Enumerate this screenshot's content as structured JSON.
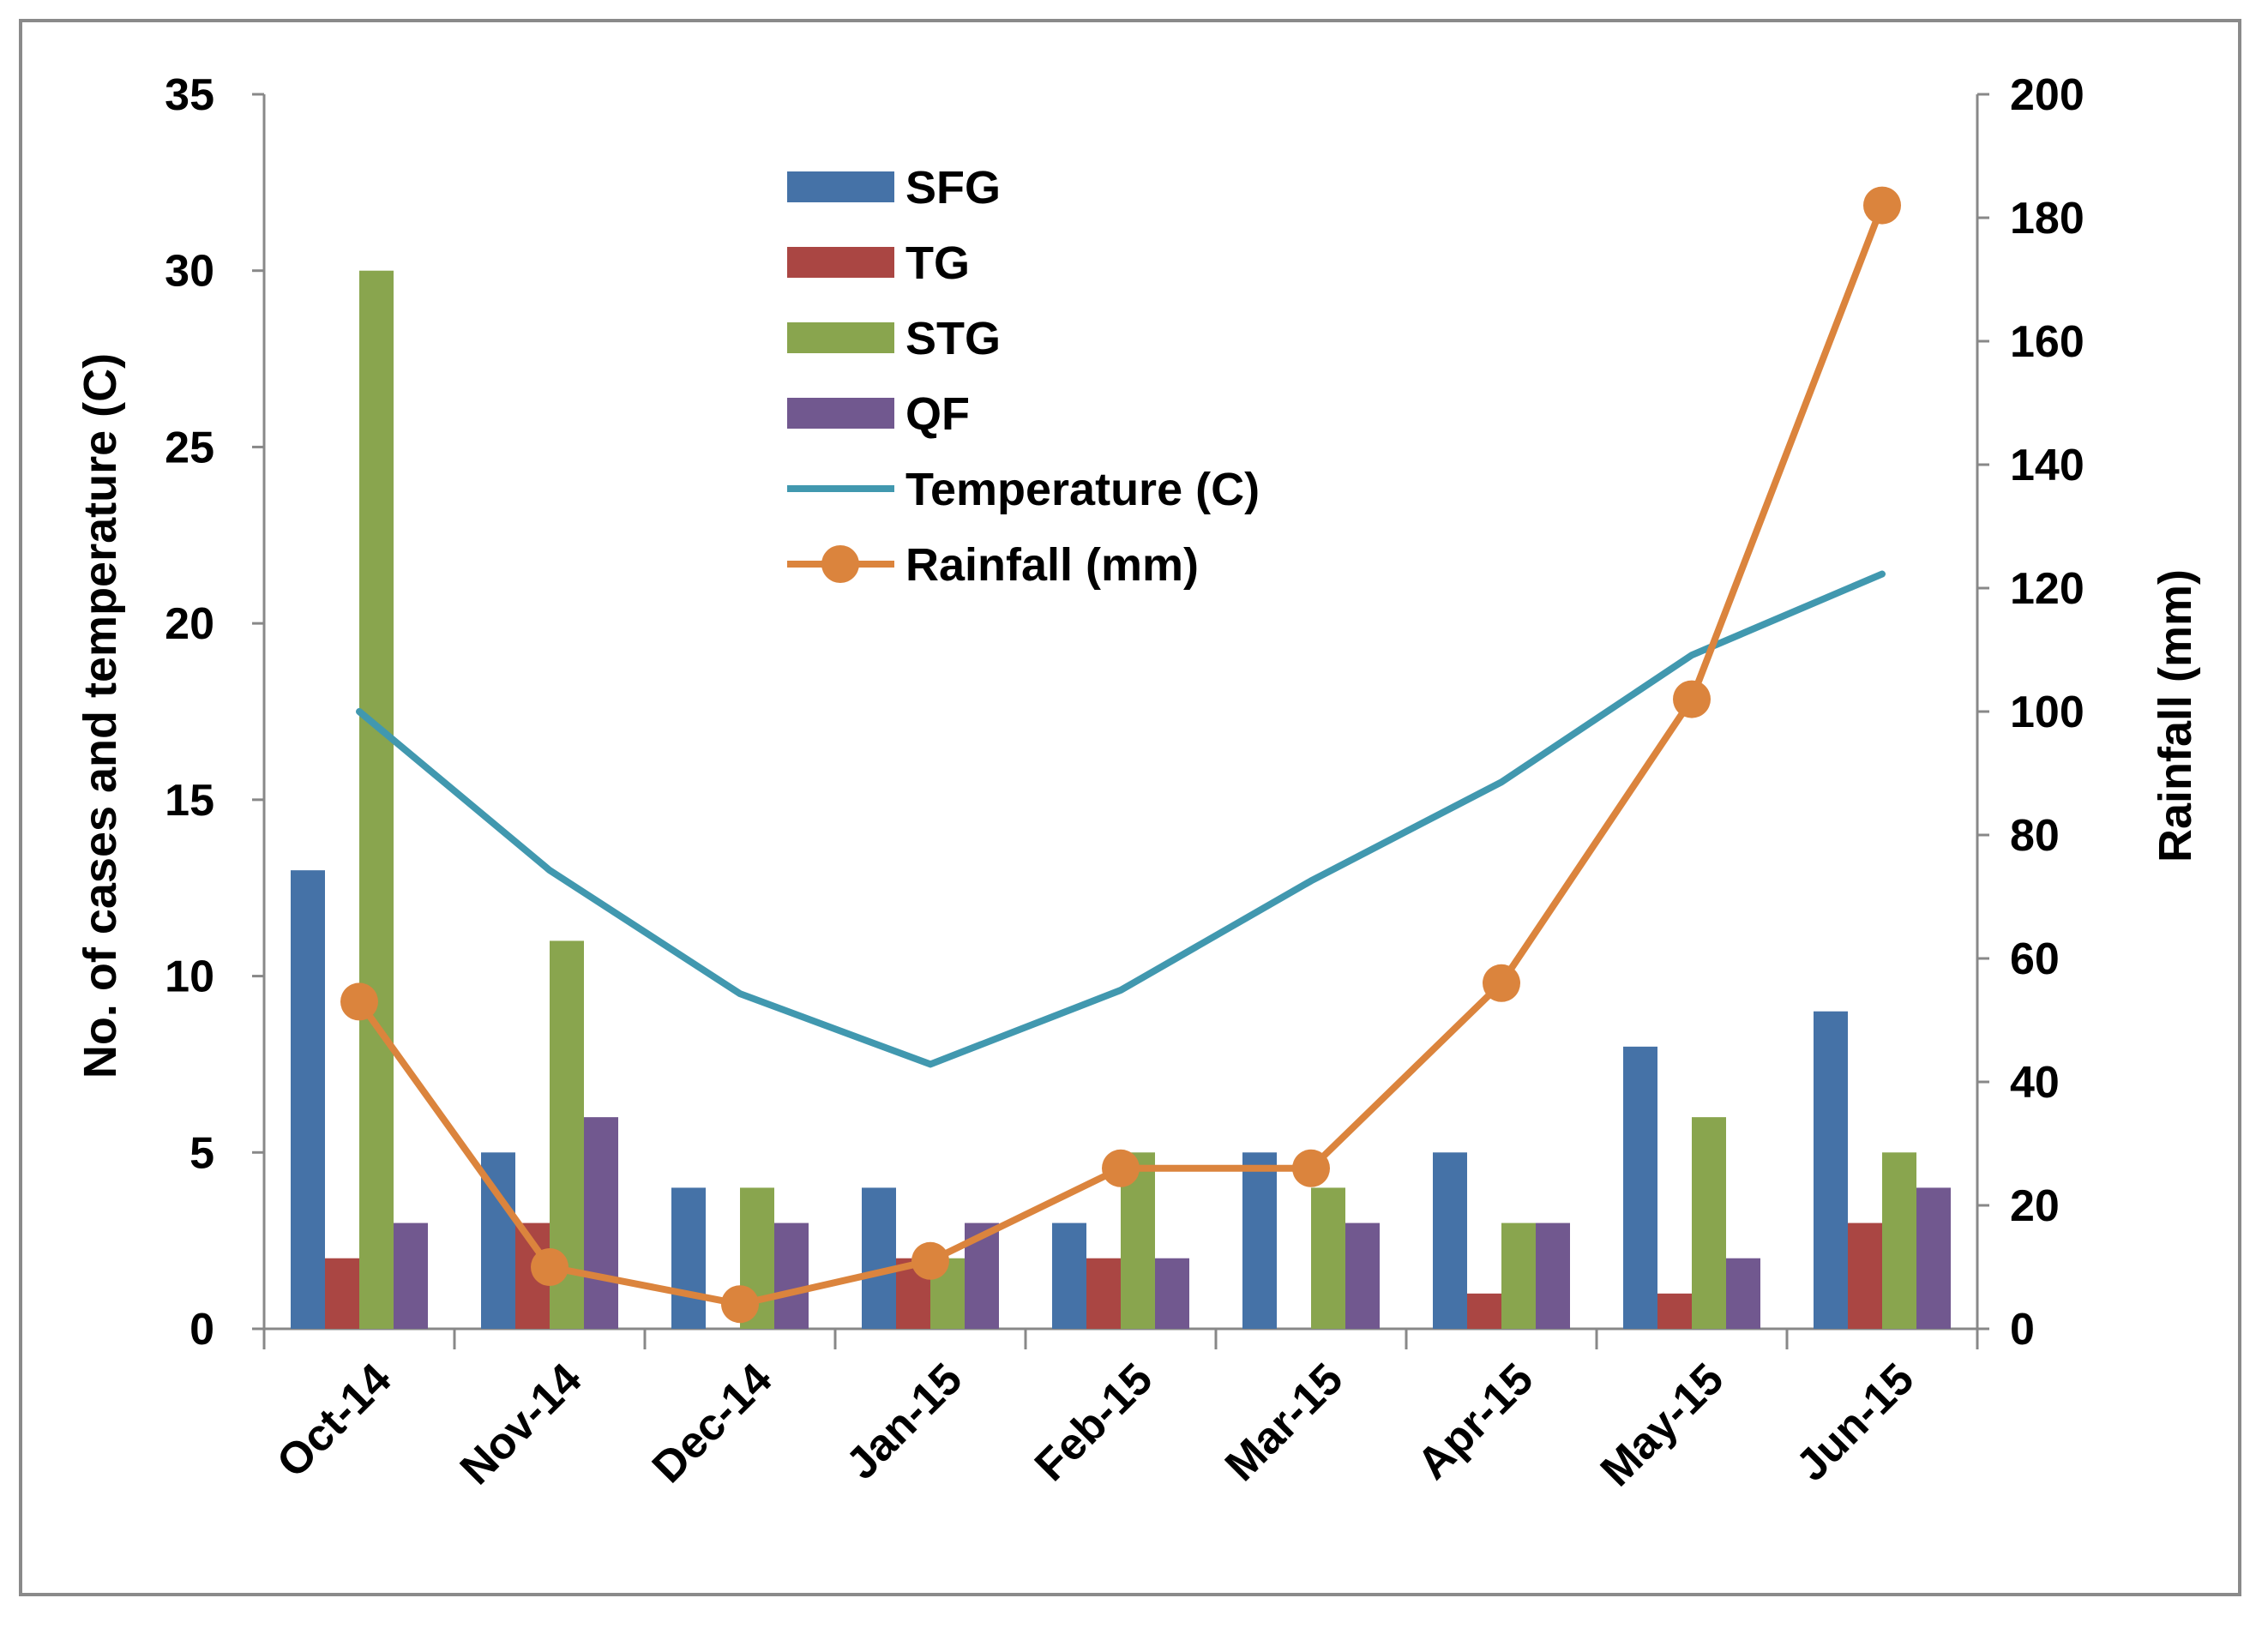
{
  "chart_data": {
    "type": "bar",
    "categories": [
      "Oct-14",
      "Nov-14",
      "Dec-14",
      "Jan-15",
      "Feb-15",
      "Mar-15",
      "Apr-15",
      "May-15",
      "Jun-15"
    ],
    "series": [
      {
        "name": "SFG",
        "kind": "bar",
        "axis": "left",
        "color": "#4572A7",
        "values": [
          13,
          5,
          4,
          4,
          3,
          5,
          5,
          8,
          9
        ]
      },
      {
        "name": "TG",
        "kind": "bar",
        "axis": "left",
        "color": "#AA4643",
        "values": [
          2,
          3,
          0,
          2,
          2,
          0,
          1,
          1,
          3
        ]
      },
      {
        "name": "STG",
        "kind": "bar",
        "axis": "left",
        "color": "#89A54E",
        "values": [
          30,
          11,
          4,
          2,
          5,
          4,
          3,
          6,
          5
        ]
      },
      {
        "name": "QF",
        "kind": "bar",
        "axis": "left",
        "color": "#71588F",
        "values": [
          3,
          6,
          3,
          3,
          2,
          3,
          3,
          2,
          4
        ]
      },
      {
        "name": "Temperature (C)",
        "kind": "line",
        "axis": "left",
        "color": "#4198AF",
        "values": [
          17.5,
          13,
          9.5,
          7.5,
          9.6,
          12.7,
          15.5,
          19.1,
          21.4
        ]
      },
      {
        "name": "Rainfall (mm)",
        "kind": "line-marker",
        "axis": "right",
        "color": "#DB843D",
        "values": [
          53,
          10,
          4,
          11,
          26,
          26,
          56,
          102,
          182
        ]
      }
    ],
    "y_left": {
      "label": "No. of cases and temperature (C)",
      "lim": [
        0,
        35
      ],
      "ticks": [
        0,
        5,
        10,
        15,
        20,
        25,
        30,
        35
      ]
    },
    "y_right": {
      "label": "Rainfall (mm)",
      "lim": [
        0,
        200
      ],
      "ticks": [
        0,
        20,
        40,
        60,
        80,
        100,
        120,
        140,
        160,
        180,
        200
      ]
    },
    "legend_position": "top-center"
  }
}
